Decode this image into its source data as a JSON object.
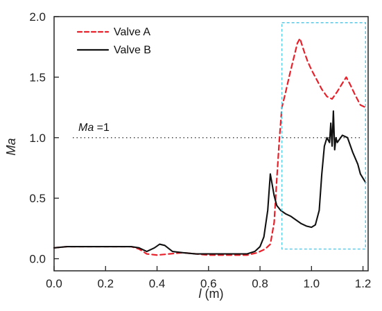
{
  "chart_data": {
    "type": "line",
    "xlabel": {
      "symbol": "l",
      "unit": "(m)"
    },
    "ylabel": "Ma",
    "xlim": [
      0.0,
      1.22
    ],
    "ylim": [
      -0.1,
      2.0
    ],
    "xticks": [
      0.0,
      0.2,
      0.4,
      0.6,
      0.8,
      1.0,
      1.2
    ],
    "yticks": [
      0.0,
      0.5,
      1.0,
      1.5,
      2.0
    ],
    "xtick_labels": [
      "0.0",
      "0.2",
      "0.4",
      "0.6",
      "0.8",
      "1.0",
      "1.2"
    ],
    "ytick_labels": [
      "0.0",
      "0.5",
      "1.0",
      "1.5",
      "2.0"
    ],
    "grid": false,
    "legend_position": "top-left",
    "series": [
      {
        "name": "Valve A",
        "color": "#e8202a",
        "dash": "dashed",
        "points": [
          [
            0.0,
            0.09
          ],
          [
            0.05,
            0.1
          ],
          [
            0.1,
            0.1
          ],
          [
            0.15,
            0.1
          ],
          [
            0.2,
            0.1
          ],
          [
            0.25,
            0.1
          ],
          [
            0.3,
            0.1
          ],
          [
            0.33,
            0.08
          ],
          [
            0.36,
            0.04
          ],
          [
            0.4,
            0.03
          ],
          [
            0.45,
            0.04
          ],
          [
            0.5,
            0.05
          ],
          [
            0.55,
            0.04
          ],
          [
            0.6,
            0.03
          ],
          [
            0.65,
            0.03
          ],
          [
            0.7,
            0.03
          ],
          [
            0.75,
            0.03
          ],
          [
            0.79,
            0.05
          ],
          [
            0.82,
            0.08
          ],
          [
            0.84,
            0.12
          ],
          [
            0.855,
            0.3
          ],
          [
            0.865,
            0.65
          ],
          [
            0.875,
            0.98
          ],
          [
            0.885,
            1.25
          ],
          [
            0.9,
            1.38
          ],
          [
            0.915,
            1.52
          ],
          [
            0.93,
            1.65
          ],
          [
            0.945,
            1.78
          ],
          [
            0.955,
            1.82
          ],
          [
            0.97,
            1.72
          ],
          [
            0.985,
            1.63
          ],
          [
            1.0,
            1.56
          ],
          [
            1.02,
            1.48
          ],
          [
            1.04,
            1.4
          ],
          [
            1.06,
            1.34
          ],
          [
            1.08,
            1.32
          ],
          [
            1.1,
            1.38
          ],
          [
            1.12,
            1.45
          ],
          [
            1.135,
            1.5
          ],
          [
            1.15,
            1.44
          ],
          [
            1.17,
            1.35
          ],
          [
            1.19,
            1.27
          ],
          [
            1.21,
            1.25
          ]
        ]
      },
      {
        "name": "Valve B",
        "color": "#111111",
        "dash": "solid",
        "points": [
          [
            0.0,
            0.09
          ],
          [
            0.05,
            0.1
          ],
          [
            0.1,
            0.1
          ],
          [
            0.15,
            0.1
          ],
          [
            0.2,
            0.1
          ],
          [
            0.25,
            0.1
          ],
          [
            0.3,
            0.1
          ],
          [
            0.33,
            0.09
          ],
          [
            0.36,
            0.06
          ],
          [
            0.39,
            0.09
          ],
          [
            0.41,
            0.12
          ],
          [
            0.43,
            0.11
          ],
          [
            0.46,
            0.06
          ],
          [
            0.5,
            0.05
          ],
          [
            0.55,
            0.04
          ],
          [
            0.6,
            0.04
          ],
          [
            0.65,
            0.04
          ],
          [
            0.7,
            0.04
          ],
          [
            0.75,
            0.04
          ],
          [
            0.78,
            0.06
          ],
          [
            0.8,
            0.1
          ],
          [
            0.815,
            0.18
          ],
          [
            0.83,
            0.4
          ],
          [
            0.84,
            0.7
          ],
          [
            0.845,
            0.64
          ],
          [
            0.855,
            0.52
          ],
          [
            0.865,
            0.44
          ],
          [
            0.88,
            0.4
          ],
          [
            0.9,
            0.37
          ],
          [
            0.92,
            0.35
          ],
          [
            0.94,
            0.32
          ],
          [
            0.96,
            0.29
          ],
          [
            0.98,
            0.27
          ],
          [
            1.0,
            0.26
          ],
          [
            1.015,
            0.28
          ],
          [
            1.03,
            0.4
          ],
          [
            1.04,
            0.7
          ],
          [
            1.05,
            0.93
          ],
          [
            1.06,
            1.0
          ],
          [
            1.07,
            0.96
          ],
          [
            1.075,
            1.12
          ],
          [
            1.08,
            0.93
          ],
          [
            1.085,
            1.22
          ],
          [
            1.09,
            0.9
          ],
          [
            1.095,
            1.0
          ],
          [
            1.1,
            0.96
          ],
          [
            1.12,
            1.02
          ],
          [
            1.14,
            1.0
          ],
          [
            1.16,
            0.88
          ],
          [
            1.18,
            0.78
          ],
          [
            1.19,
            0.7
          ],
          [
            1.21,
            0.63
          ]
        ]
      }
    ],
    "reference_line": {
      "y": 1.0,
      "label_symbol": "Ma",
      "label_suffix": " =1",
      "style": "dotted",
      "color": "#444444"
    },
    "highlight_box": {
      "x0": 0.885,
      "x1": 1.21,
      "y0": 0.08,
      "y1": 1.95,
      "color": "#55c8e6",
      "style": "dashed"
    }
  }
}
